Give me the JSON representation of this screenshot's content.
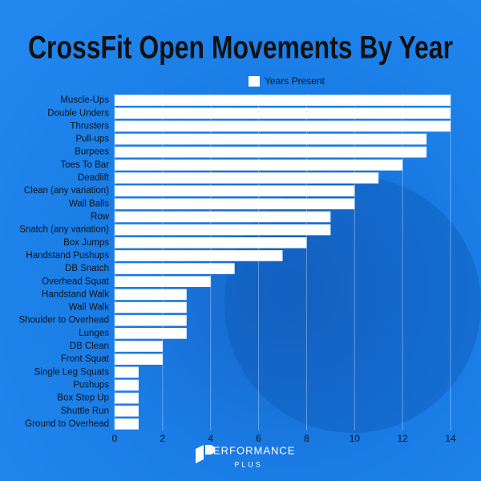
{
  "chart_data": {
    "type": "hbar",
    "title": "CrossFit Open Movements By Year",
    "categories": [
      "Muscle-Ups",
      "Double Unders",
      "Thrusters",
      "Pull-ups",
      "Burpees",
      "Toes To Bar",
      "Deadlift",
      "Clean (any variation)",
      "Wall Balls",
      "Row",
      "Snatch (any variation)",
      "Box Jumps",
      "Handstand Pushups",
      "DB Snatch",
      "Overhead Squat",
      "Handstand Walk",
      "Wall Walk",
      "Shoulder to Overhead",
      "Lunges",
      "DB Clean",
      "Front Squat",
      "Single Leg Squats",
      "Pushups",
      "Box Step Up",
      "Shuttle Run",
      "Ground to Overhead"
    ],
    "series": [
      {
        "name": "Years Present",
        "color": "#ffffff",
        "values": [
          14,
          14,
          14,
          13,
          13,
          12,
          11,
          10,
          10,
          9,
          9,
          8,
          7,
          5,
          4,
          3,
          3,
          3,
          3,
          2,
          2,
          1,
          1,
          1,
          1,
          1
        ]
      }
    ],
    "xlim": [
      0,
      14
    ],
    "xticks": [
      0,
      2,
      4,
      6,
      8,
      10,
      12,
      14
    ],
    "grid": true,
    "legend": "top"
  },
  "logo": {
    "mark": "ERFORMANCE",
    "tagline": "PLUS"
  }
}
